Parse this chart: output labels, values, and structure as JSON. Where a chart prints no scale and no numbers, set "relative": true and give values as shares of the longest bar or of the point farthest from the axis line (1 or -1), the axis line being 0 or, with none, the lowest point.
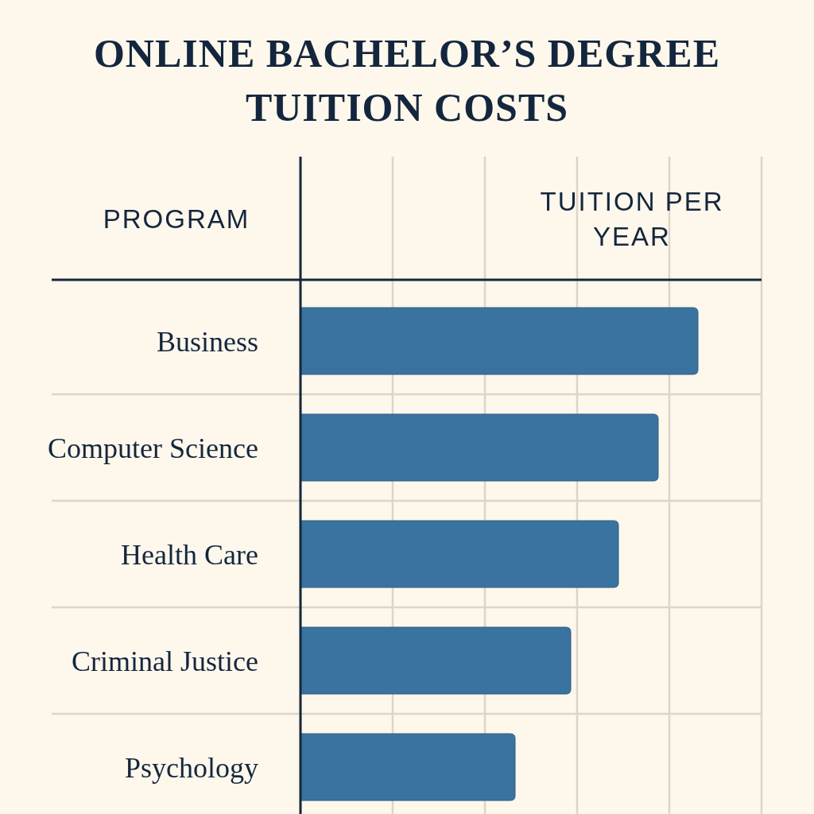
{
  "chart_data": {
    "type": "bar",
    "orientation": "horizontal",
    "relative": true,
    "grid": true,
    "title": "ONLINE BACHELOR’S DEGREE TUITION COSTS",
    "xlabel": "TUITION PER YEAR",
    "ylabel": "PROGRAM",
    "categories": [
      "Business",
      "Computer Science",
      "Health Care",
      "Criminal Justice",
      "Psychology"
    ],
    "values": [
      1,
      0.9,
      0.8,
      0.68,
      0.54
    ],
    "color": "#3a73a0"
  }
}
